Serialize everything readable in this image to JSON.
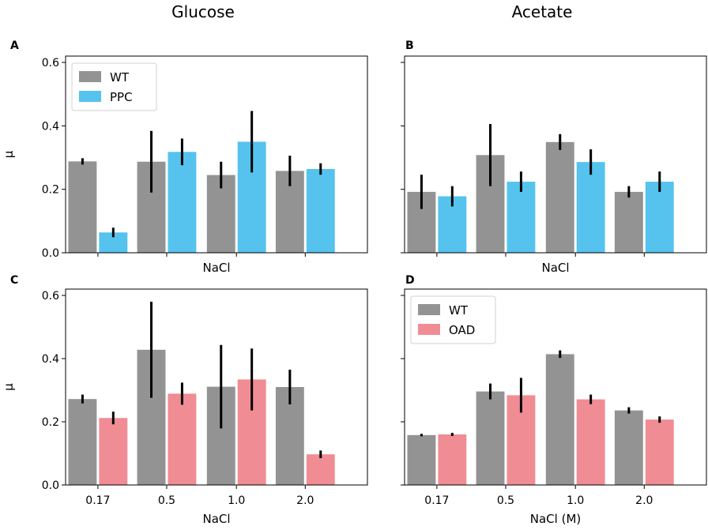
{
  "column_titles": [
    "Glucose",
    "Acetate"
  ],
  "colors": {
    "WT": "#939393",
    "PPC": "#55c3ee",
    "OAD": "#f08c94",
    "errorbar": "#000000"
  },
  "chart_data": [
    {
      "id": "A",
      "type": "bar",
      "column_title": "Glucose",
      "xlabel": "NaCl",
      "ylabel": "μ",
      "ylim": [
        0,
        0.62
      ],
      "yticks": [
        "0.0",
        "0.2",
        "0.4",
        "0.6"
      ],
      "show_ytick_labels": true,
      "categories": [
        "0.17",
        "0.5",
        "1.0",
        "2.0"
      ],
      "show_xtick_labels": false,
      "legend": {
        "placement": "top-left",
        "entries": [
          "WT",
          "PPC"
        ]
      },
      "series": [
        {
          "name": "WT",
          "values": [
            0.288,
            0.287,
            0.245,
            0.258
          ],
          "err": [
            0.01,
            0.097,
            0.042,
            0.048
          ]
        },
        {
          "name": "PPC",
          "values": [
            0.064,
            0.318,
            0.35,
            0.264
          ],
          "err": [
            0.015,
            0.042,
            0.097,
            0.018
          ]
        }
      ]
    },
    {
      "id": "B",
      "type": "bar",
      "column_title": "Acetate",
      "xlabel": "NaCl",
      "ylabel": "",
      "ylim": [
        0,
        0.62
      ],
      "yticks": [
        "0.0",
        "0.2",
        "0.4",
        "0.6"
      ],
      "show_ytick_labels": false,
      "categories": [
        "0.17",
        "0.5",
        "1.0",
        "2.0"
      ],
      "show_xtick_labels": false,
      "legend": null,
      "series": [
        {
          "name": "WT",
          "values": [
            0.192,
            0.308,
            0.349,
            0.192
          ],
          "err": [
            0.054,
            0.098,
            0.025,
            0.018
          ]
        },
        {
          "name": "PPC",
          "values": [
            0.178,
            0.224,
            0.286,
            0.224
          ],
          "err": [
            0.032,
            0.032,
            0.04,
            0.032
          ]
        }
      ]
    },
    {
      "id": "C",
      "type": "bar",
      "column_title": "Glucose",
      "xlabel": "NaCl",
      "ylabel": "μ",
      "ylim": [
        0,
        0.62
      ],
      "yticks": [
        "0.0",
        "0.2",
        "0.4",
        "0.6"
      ],
      "show_ytick_labels": true,
      "categories": [
        "0.17",
        "0.5",
        "1.0",
        "2.0"
      ],
      "show_xtick_labels": true,
      "legend": null,
      "series": [
        {
          "name": "WT",
          "values": [
            0.272,
            0.428,
            0.311,
            0.31
          ],
          "err": [
            0.014,
            0.152,
            0.132,
            0.055
          ]
        },
        {
          "name": "OAD",
          "values": [
            0.212,
            0.289,
            0.334,
            0.097
          ],
          "err": [
            0.02,
            0.035,
            0.098,
            0.012
          ]
        }
      ]
    },
    {
      "id": "D",
      "type": "bar",
      "column_title": "Acetate",
      "xlabel": "NaCl (M)",
      "ylabel": "",
      "ylim": [
        0,
        0.62
      ],
      "yticks": [
        "0.0",
        "0.2",
        "0.4",
        "0.6"
      ],
      "show_ytick_labels": false,
      "categories": [
        "0.17",
        "0.5",
        "1.0",
        "2.0"
      ],
      "show_xtick_labels": true,
      "legend": {
        "placement": "top-left",
        "entries": [
          "WT",
          "OAD"
        ]
      },
      "series": [
        {
          "name": "WT",
          "values": [
            0.158,
            0.296,
            0.414,
            0.236
          ],
          "err": [
            0.004,
            0.025,
            0.012,
            0.01
          ]
        },
        {
          "name": "OAD",
          "values": [
            0.16,
            0.284,
            0.271,
            0.207
          ],
          "err": [
            0.005,
            0.055,
            0.015,
            0.01
          ]
        }
      ]
    }
  ]
}
